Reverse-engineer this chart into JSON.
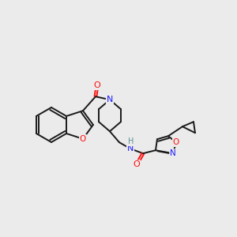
{
  "background_color": "#ebebeb",
  "bond_color": "#1a1a1a",
  "atom_colors": {
    "N": "#1919ff",
    "O": "#ff0d0d",
    "H": "#5a9090",
    "C": "#1a1a1a"
  },
  "figsize": [
    3.0,
    3.0
  ],
  "dpi": 100
}
